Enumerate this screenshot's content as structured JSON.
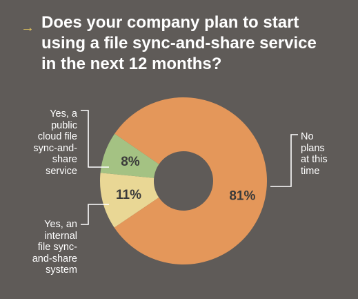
{
  "header": {
    "arrow_glyph": "→",
    "title_lines": [
      "Does your company plan to start",
      "using a file sync-and-share service",
      "in the next 12 months?"
    ]
  },
  "colors": {
    "background": "#5f5b58",
    "accent": "#e1c35c",
    "no_plans": "#e4975a",
    "public_cloud": "#e9d795",
    "internal": "#a4c283"
  },
  "chart_data": {
    "type": "pie",
    "donut": true,
    "title": "Does your company plan to start using a file sync-and-share service in the next 12 months?",
    "unit": "%",
    "slices": [
      {
        "label": "Yes, a public cloud file sync-and-share service",
        "value": 11,
        "value_label": "11%"
      },
      {
        "label": "Yes, an internal file sync-and-share system",
        "value": 8,
        "value_label": "8%"
      },
      {
        "label": "No plans at this time",
        "value": 81,
        "value_label": "81%"
      }
    ]
  },
  "labels": {
    "public_cloud": [
      "Yes, a",
      "public",
      "cloud file",
      "sync-and-",
      "share",
      "service"
    ],
    "internal": [
      "Yes, an",
      "internal",
      "file sync-",
      "and-share",
      "system"
    ],
    "no_plans": [
      "No",
      "plans",
      "at this",
      "time"
    ]
  }
}
